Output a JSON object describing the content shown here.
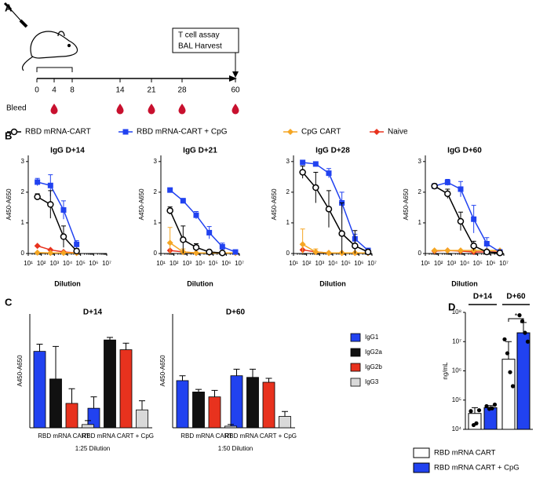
{
  "panel_labels": [
    "A",
    "B",
    "C",
    "D"
  ],
  "timeline": {
    "box_lines": [
      "T cell assay",
      "BAL Harvest"
    ],
    "days": [
      "0",
      "4",
      "8",
      "14",
      "21",
      "28",
      "60"
    ],
    "bleed_label": "Bleed"
  },
  "chart_data": [
    {
      "type": "line",
      "log_x": true,
      "xlabel": "Dilution",
      "ylabel": "A450-A650",
      "legend": [
        {
          "name": "RBD mRNA-CART",
          "color": "#000000",
          "marker": "circle-open"
        },
        {
          "name": "RBD mRNA-CART + CpG",
          "color": "#2142f0",
          "marker": "square"
        },
        {
          "name": "CpG CART",
          "color": "#f5a623",
          "marker": "diamond"
        },
        {
          "name": "Naive",
          "color": "#e8321e",
          "marker": "diamond"
        }
      ],
      "x": [
        50,
        500,
        5000,
        50000,
        500000,
        5000000
      ],
      "xlim": [
        10,
        10000000
      ],
      "xticks": [
        {
          "value": 10,
          "label": "10¹"
        },
        {
          "value": 100,
          "label": "10²"
        },
        {
          "value": 1000,
          "label": "10³"
        },
        {
          "value": 10000,
          "label": "10⁴"
        },
        {
          "value": 100000,
          "label": "10⁵"
        },
        {
          "value": 1000000,
          "label": "10⁶"
        },
        {
          "value": 10000000,
          "label": "10⁷"
        }
      ],
      "ylim": [
        0,
        3.2
      ],
      "yticks": [
        0,
        1,
        2,
        3
      ],
      "panels": [
        {
          "title": "IgG D+14",
          "series": [
            {
              "values": [
                1.85,
                1.6,
                0.55,
                0.08,
                null,
                null
              ],
              "errors": [
                0.1,
                0.45,
                0.35,
                0.08,
                null,
                null
              ]
            },
            {
              "values": [
                2.33,
                2.22,
                1.42,
                0.3,
                null,
                null
              ],
              "errors": [
                0.12,
                0.35,
                0.3,
                0.12,
                null,
                null
              ]
            },
            {
              "values": [
                0.03,
                0.02,
                0.02,
                0.02,
                null,
                null
              ]
            },
            {
              "values": [
                0.25,
                0.12,
                0.05,
                0.02,
                null,
                null
              ]
            }
          ]
        },
        {
          "title": "IgG D+21",
          "series": [
            {
              "values": [
                1.4,
                0.45,
                0.2,
                0.05,
                0.02,
                null
              ],
              "errors": [
                0.12,
                0.45,
                0.12,
                0.05,
                0.02,
                null
              ]
            },
            {
              "values": [
                2.07,
                1.72,
                1.25,
                0.68,
                0.22,
                0.05
              ],
              "errors": [
                0.05,
                0.08,
                0.12,
                0.2,
                0.12,
                0.04
              ]
            },
            {
              "values": [
                0.35,
                0.05,
                0.02,
                0.02,
                0.02,
                0.02
              ],
              "errors": [
                0.5,
                0.1,
                0.02,
                0.02,
                0.02,
                0.02
              ]
            },
            {
              "values": [
                0.1,
                0.05,
                0.02,
                0.02,
                0.02,
                0.02
              ]
            }
          ]
        },
        {
          "title": "IgG D+28",
          "series": [
            {
              "values": [
                2.65,
                2.15,
                1.45,
                0.65,
                0.25,
                0.05
              ],
              "errors": [
                0.2,
                0.5,
                0.6,
                1.0,
                0.5,
                0.05
              ]
            },
            {
              "values": [
                2.97,
                2.92,
                2.62,
                1.65,
                0.48,
                0.1
              ],
              "errors": [
                0.05,
                0.05,
                0.15,
                0.35,
                0.15,
                0.05
              ]
            },
            {
              "values": [
                0.3,
                0.05,
                0.02,
                0.02,
                0.02,
                0.02
              ],
              "errors": [
                0.5,
                0.1,
                0.02,
                0.02,
                0.02,
                0.02
              ]
            },
            {
              "values": [
                0.12,
                0.05,
                0.02,
                0.02,
                0.02,
                0.02
              ]
            }
          ]
        },
        {
          "title": "IgG D+60",
          "series": [
            {
              "values": [
                2.2,
                1.95,
                1.05,
                0.25,
                0.05,
                0.02
              ],
              "errors": [
                0.05,
                0.15,
                0.3,
                0.15,
                0.05,
                0.02
              ]
            },
            {
              "values": [
                2.2,
                2.32,
                2.1,
                1.12,
                0.32,
                0.05
              ],
              "errors": [
                0.05,
                0.1,
                0.25,
                0.45,
                0.2,
                0.05
              ]
            },
            {
              "values": [
                0.1,
                0.1,
                0.1,
                0.1,
                0.1,
                0.1
              ]
            },
            {
              "values": [
                0.08,
                0.1,
                0.08,
                0.05,
                0.05,
                0.05
              ]
            }
          ]
        }
      ]
    },
    {
      "type": "grouped-bar",
      "title": "D+14",
      "ylabel": "A450-A650",
      "xlabel": "1:25 Dilution",
      "ylim": [
        0,
        3.5
      ],
      "categories": [
        "RBD mRNA CART",
        "RBD mRNA CART + CpG"
      ],
      "series": [
        {
          "color": "#2142f0",
          "values": [
            2.35,
            0.6
          ],
          "errors": [
            0.22,
            0.35
          ]
        },
        {
          "color": "#111111",
          "values": [
            1.5,
            2.7
          ],
          "errors": [
            1.0,
            0.08
          ]
        },
        {
          "color": "#e8321e",
          "values": [
            0.75,
            2.4
          ],
          "errors": [
            0.45,
            0.2
          ]
        },
        {
          "color": "#d9d9d9",
          "values": [
            0.1,
            0.55
          ],
          "errors": [
            0.12,
            0.28
          ]
        }
      ]
    },
    {
      "type": "grouped-bar",
      "title": "D+60",
      "ylabel": "A450-A650",
      "xlabel": "1:50 Dilution",
      "ylim": [
        0,
        3.5
      ],
      "legend": true,
      "categories": [
        "RBD mRNA CART",
        "RBD mRNA CART + CpG"
      ],
      "series": [
        {
          "name": "IgG1",
          "color": "#2142f0",
          "values": [
            1.45,
            1.6
          ],
          "errors": [
            0.15,
            0.2
          ]
        },
        {
          "name": "IgG2a",
          "color": "#111111",
          "values": [
            1.1,
            1.55
          ],
          "errors": [
            0.08,
            0.25
          ]
        },
        {
          "name": "IgG2b",
          "color": "#e8321e",
          "values": [
            0.95,
            1.4
          ],
          "errors": [
            0.2,
            0.12
          ]
        },
        {
          "name": "IgG3",
          "color": "#d9d9d9",
          "values": [
            0.05,
            0.35
          ],
          "errors": [
            0.05,
            0.15
          ]
        }
      ]
    },
    {
      "type": "dot-bar",
      "log_y": true,
      "ylabel": "ng/mL",
      "ylim": [
        10000,
        100000000
      ],
      "yticks": [
        {
          "value": 10000,
          "label": "10⁴"
        },
        {
          "value": 100000,
          "label": "10⁵"
        },
        {
          "value": 1000000,
          "label": "10⁶"
        },
        {
          "value": 10000000,
          "label": "10⁷"
        },
        {
          "value": 100000000,
          "label": "10⁸"
        }
      ],
      "groups": [
        "D+14",
        "D+60"
      ],
      "annotation": "*",
      "series": [
        {
          "name": "RBD mRNA CART",
          "color": "#ffffff",
          "values": [
            35000,
            2500000
          ],
          "errors": [
            20000,
            7500000
          ],
          "points": [
            [
              42000,
              14000,
              16000,
              45000
            ],
            [
              12000000,
              4000000,
              900000,
              300000
            ]
          ]
        },
        {
          "name": "RBD mRNA CART + CpG",
          "color": "#2142f0",
          "values": [
            55000,
            20000000
          ],
          "errors": [
            10000,
            25000000
          ],
          "points": [
            [
              62000,
              50000,
              52000,
              70000
            ],
            [
              80000000,
              50000000,
              20000000,
              10000000
            ]
          ]
        }
      ]
    }
  ]
}
